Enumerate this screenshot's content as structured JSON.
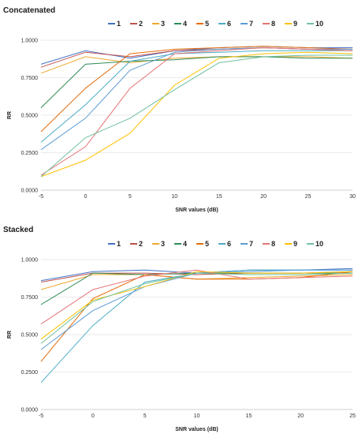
{
  "chart_data": [
    {
      "type": "line",
      "title": "Concatenated",
      "xlabel": "SNR values (dB)",
      "ylabel": "RR",
      "x": [
        -5,
        0,
        5,
        10,
        15,
        20,
        25,
        30
      ],
      "xlim": [
        -5,
        30
      ],
      "ylim": [
        0,
        1
      ],
      "yticks": [
        "0.0000",
        "0.2500",
        "0.5000",
        "0.7500",
        "1.0000"
      ],
      "xticks": [
        "-5",
        "0",
        "5",
        "10",
        "15",
        "20",
        "25",
        "30"
      ],
      "grid": true,
      "legend": "top-center",
      "series": [
        {
          "name": "1",
          "color": "#4472c4",
          "values": [
            0.84,
            0.93,
            0.88,
            0.93,
            0.95,
            0.96,
            0.95,
            0.95
          ]
        },
        {
          "name": "2",
          "color": "#c0504d",
          "values": [
            0.82,
            0.92,
            0.89,
            0.93,
            0.94,
            0.95,
            0.94,
            0.93
          ]
        },
        {
          "name": "3",
          "color": "#f0a830",
          "values": [
            0.78,
            0.89,
            0.85,
            0.88,
            0.89,
            0.89,
            0.89,
            0.88
          ]
        },
        {
          "name": "4",
          "color": "#2e8b57",
          "values": [
            0.55,
            0.84,
            0.86,
            0.87,
            0.89,
            0.89,
            0.88,
            0.88
          ]
        },
        {
          "name": "5",
          "color": "#e46c0a",
          "values": [
            0.39,
            0.68,
            0.91,
            0.94,
            0.95,
            0.96,
            0.95,
            0.94
          ]
        },
        {
          "name": "6",
          "color": "#4bacc6",
          "values": [
            0.32,
            0.57,
            0.86,
            0.91,
            0.92,
            0.93,
            0.93,
            0.93
          ]
        },
        {
          "name": "7",
          "color": "#5b9bd5",
          "values": [
            0.27,
            0.48,
            0.8,
            0.92,
            0.94,
            0.95,
            0.94,
            0.94
          ]
        },
        {
          "name": "8",
          "color": "#e57373",
          "values": [
            0.1,
            0.29,
            0.68,
            0.91,
            0.93,
            0.95,
            0.94,
            0.93
          ]
        },
        {
          "name": "9",
          "color": "#ffc000",
          "values": [
            0.09,
            0.2,
            0.38,
            0.7,
            0.88,
            0.91,
            0.92,
            0.91
          ]
        },
        {
          "name": "10",
          "color": "#70c1a0",
          "values": [
            0.09,
            0.35,
            0.48,
            0.67,
            0.85,
            0.89,
            0.9,
            0.9
          ]
        }
      ]
    },
    {
      "type": "line",
      "title": "Stacked",
      "xlabel": "SNR values (dB)",
      "ylabel": "RR",
      "x": [
        -5,
        0,
        5,
        10,
        15,
        20,
        25
      ],
      "xlim": [
        -5,
        25
      ],
      "ylim": [
        0,
        1
      ],
      "yticks": [
        "0.0000",
        "0.2500",
        "0.5000",
        "0.7500",
        "1.0000"
      ],
      "xticks": [
        "-5",
        "0",
        "5",
        "10",
        "15",
        "20",
        "25"
      ],
      "grid": true,
      "legend": "top-center",
      "series": [
        {
          "name": "1",
          "color": "#4472c4",
          "values": [
            0.86,
            0.92,
            0.93,
            0.91,
            0.93,
            0.93,
            0.94
          ]
        },
        {
          "name": "2",
          "color": "#c0504d",
          "values": [
            0.85,
            0.91,
            0.91,
            0.9,
            0.91,
            0.91,
            0.92
          ]
        },
        {
          "name": "3",
          "color": "#f0a830",
          "values": [
            0.8,
            0.9,
            0.9,
            0.87,
            0.88,
            0.89,
            0.9
          ]
        },
        {
          "name": "4",
          "color": "#2e8b57",
          "values": [
            0.7,
            0.91,
            0.9,
            0.91,
            0.91,
            0.91,
            0.91
          ]
        },
        {
          "name": "5",
          "color": "#e46c0a",
          "values": [
            0.32,
            0.74,
            0.9,
            0.87,
            0.87,
            0.88,
            0.92
          ]
        },
        {
          "name": "6",
          "color": "#4bacc6",
          "values": [
            0.18,
            0.56,
            0.85,
            0.91,
            0.93,
            0.93,
            0.93
          ]
        },
        {
          "name": "7",
          "color": "#5b9bd5",
          "values": [
            0.4,
            0.66,
            0.82,
            0.91,
            0.92,
            0.93,
            0.93
          ]
        },
        {
          "name": "8",
          "color": "#e57373",
          "values": [
            0.57,
            0.8,
            0.89,
            0.93,
            0.87,
            0.88,
            0.89
          ]
        },
        {
          "name": "9",
          "color": "#ffc000",
          "values": [
            0.47,
            0.73,
            0.82,
            0.92,
            0.91,
            0.91,
            0.92
          ]
        },
        {
          "name": "10",
          "color": "#70c1a0",
          "values": [
            0.44,
            0.72,
            0.84,
            0.91,
            0.9,
            0.9,
            0.91
          ]
        }
      ]
    }
  ]
}
